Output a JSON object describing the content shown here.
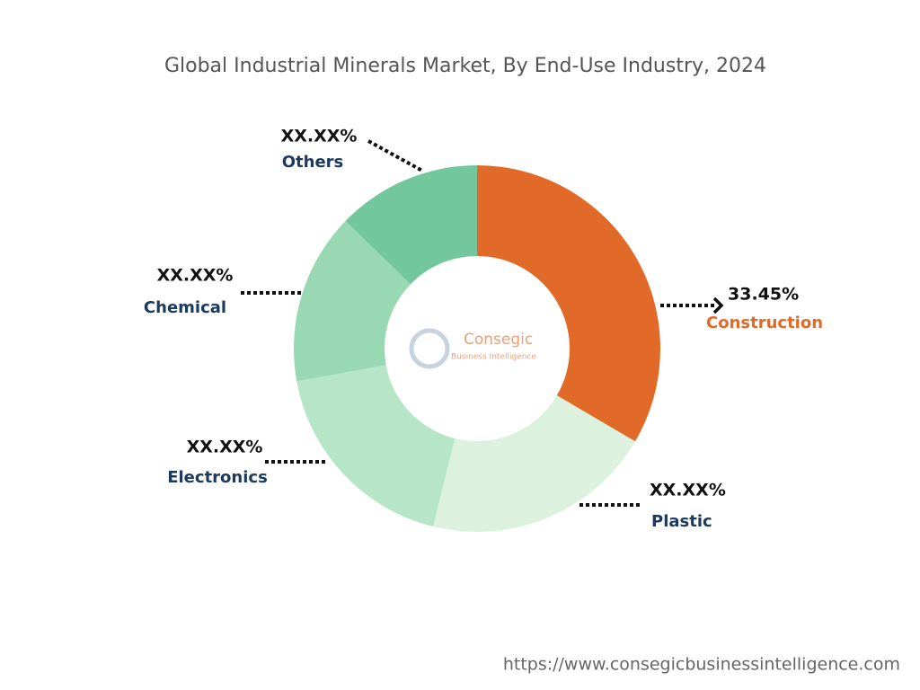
{
  "chart_data": {
    "type": "donut",
    "title": "Global Industrial Minerals Market, By End-Use Industry, 2024",
    "categories": [
      "Construction",
      "Plastic",
      "Electronics",
      "Chemical",
      "Others"
    ],
    "values": [
      33.45,
      20.4,
      18.3,
      15.1,
      12.75
    ],
    "value_labels": [
      "33.45%",
      "XX.XX%",
      "XX.XX%",
      "XX.XX%",
      "XX.XX%"
    ],
    "colors": [
      "#e26a28",
      "#dcf2df",
      "#b6e5c8",
      "#98d8b2",
      "#73c79c"
    ],
    "label_colors": [
      "#e26a28",
      "#1b3a5e",
      "#1b3a5e",
      "#1b3a5e",
      "#1b3a5e"
    ]
  },
  "watermark": {
    "name": "Consegic",
    "tagline": "Business Intelligence"
  },
  "footer": {
    "url": "https://www.consegicbusinessintelligence.com"
  }
}
